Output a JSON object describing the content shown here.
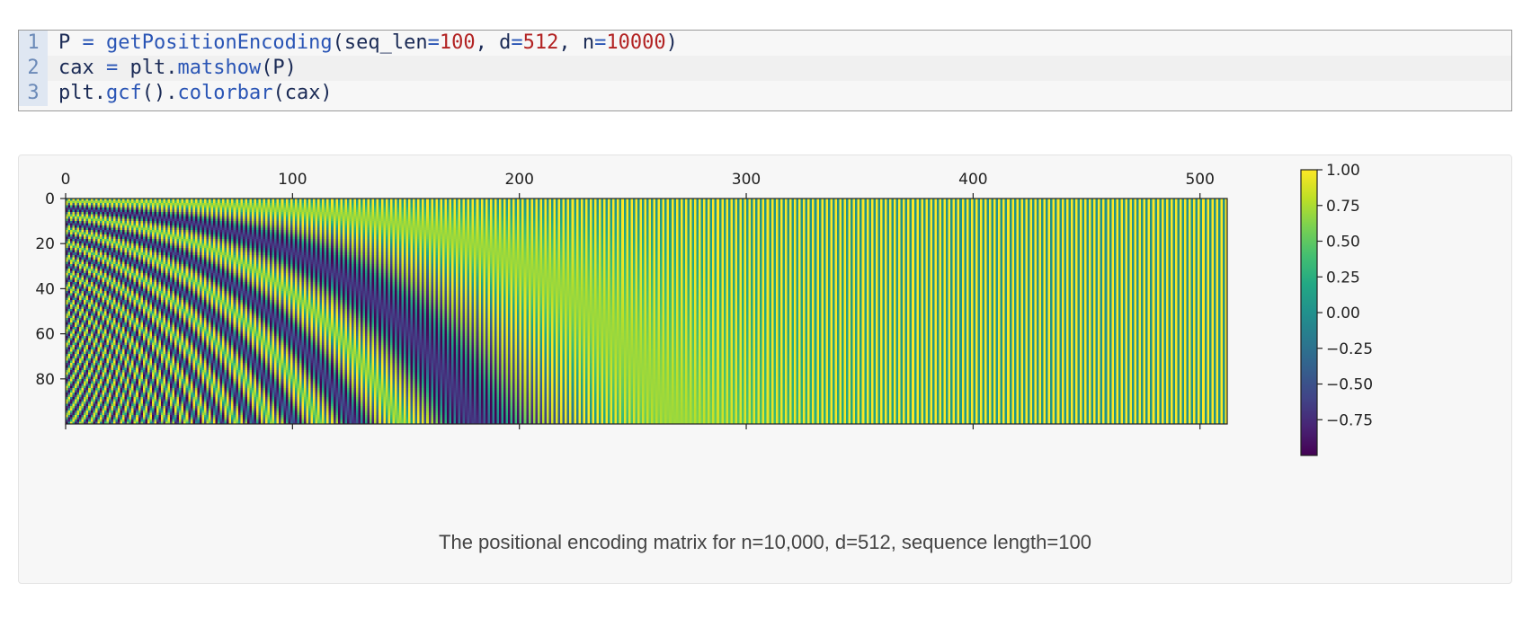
{
  "code": {
    "lines": [
      {
        "no": "1",
        "tokens": [
          {
            "t": "P ",
            "c": "id"
          },
          {
            "t": "=",
            "c": "op"
          },
          {
            "t": " ",
            "c": "id"
          },
          {
            "t": "getPositionEncoding",
            "c": "fn"
          },
          {
            "t": "(seq_len",
            "c": "id"
          },
          {
            "t": "=",
            "c": "op"
          },
          {
            "t": "100",
            "c": "num"
          },
          {
            "t": ", d",
            "c": "id"
          },
          {
            "t": "=",
            "c": "op"
          },
          {
            "t": "512",
            "c": "num"
          },
          {
            "t": ", n",
            "c": "id"
          },
          {
            "t": "=",
            "c": "op"
          },
          {
            "t": "10000",
            "c": "num"
          },
          {
            "t": ")",
            "c": "id"
          }
        ]
      },
      {
        "no": "2",
        "tokens": [
          {
            "t": "cax ",
            "c": "id"
          },
          {
            "t": "=",
            "c": "op"
          },
          {
            "t": " plt.",
            "c": "id"
          },
          {
            "t": "matshow",
            "c": "fn"
          },
          {
            "t": "(P)",
            "c": "id"
          }
        ]
      },
      {
        "no": "3",
        "tokens": [
          {
            "t": "plt.",
            "c": "id"
          },
          {
            "t": "gcf",
            "c": "fn"
          },
          {
            "t": "().",
            "c": "id"
          },
          {
            "t": "colorbar",
            "c": "fn"
          },
          {
            "t": "(cax)",
            "c": "id"
          }
        ]
      }
    ]
  },
  "figure": {
    "caption": "The positional encoding matrix for n=10,000, d=512, sequence length=100"
  },
  "chart_data": {
    "type": "heatmap",
    "title": "",
    "xlabel": "",
    "ylabel": "",
    "seq_len": 100,
    "d": 512,
    "n": 10000,
    "xlim": [
      0,
      512
    ],
    "ylim": [
      0,
      100
    ],
    "x_ticks": [
      0,
      100,
      200,
      300,
      400,
      500
    ],
    "y_ticks": [
      0,
      20,
      40,
      60,
      80
    ],
    "colormap": "viridis",
    "colorbar": {
      "range": [
        -1.0,
        1.0
      ],
      "ticks": [
        "1.00",
        "0.75",
        "0.50",
        "0.25",
        "0.00",
        "−0.25",
        "−0.50",
        "−0.75"
      ],
      "tick_values": [
        1.0,
        0.75,
        0.5,
        0.25,
        0.0,
        -0.25,
        -0.5,
        -0.75
      ],
      "placement": "right"
    },
    "x_axis_position": "top",
    "grid": false
  }
}
